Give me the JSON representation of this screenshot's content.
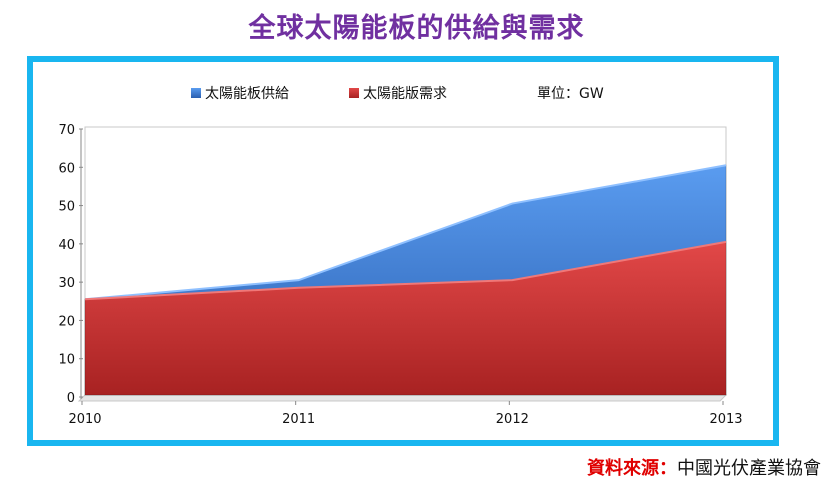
{
  "title": "全球太陽能板的供給與需求",
  "legend": {
    "supply_label": "太陽能板供給",
    "demand_label": "太陽能版需求",
    "unit_label": "單位：GW"
  },
  "source": {
    "label": "資料來源：",
    "value": "中國光伏產業協會"
  },
  "colors": {
    "title": "#7030a0",
    "frame": "#19b6f0",
    "supply": "#3a7fd5",
    "demand": "#d23a3a",
    "source_label": "#e00000"
  },
  "chart_data": {
    "type": "area",
    "x": [
      "2010",
      "2011",
      "2012",
      "2013"
    ],
    "series": [
      {
        "name": "太陽能板供給",
        "values": [
          25,
          30,
          50,
          60
        ],
        "color": "#3a7fd5"
      },
      {
        "name": "太陽能版需求",
        "values": [
          25,
          28,
          30,
          40
        ],
        "color": "#d23a3a"
      }
    ],
    "ylim": [
      0,
      70
    ],
    "yticks": [
      0,
      10,
      20,
      30,
      40,
      50,
      60,
      70
    ],
    "grid": false,
    "legend_position": "top"
  }
}
